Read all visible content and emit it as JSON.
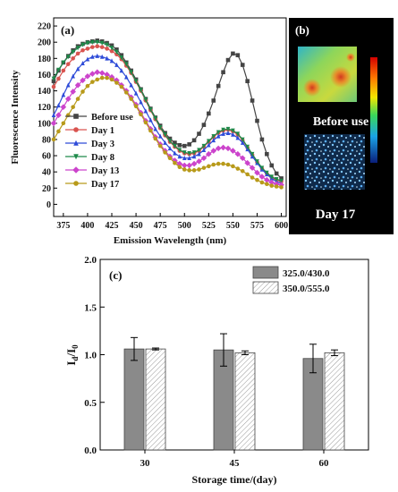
{
  "panel_a": {
    "label": "(a)",
    "chart_data": {
      "type": "line",
      "xlabel": "Emission Wavelength (nm)",
      "ylabel": "Fluorescence Intensity",
      "xlim": [
        365,
        605
      ],
      "ylim": [
        -15,
        230
      ],
      "xticks": [
        375,
        400,
        425,
        450,
        475,
        500,
        525,
        550,
        575,
        600
      ],
      "yticks": [
        0,
        20,
        40,
        60,
        80,
        100,
        120,
        140,
        160,
        180,
        200,
        220
      ],
      "legend_position": "lower-left",
      "series": [
        {
          "name": "Before use",
          "color": "#444444",
          "marker": "square",
          "x": [
            365,
            370,
            375,
            380,
            385,
            390,
            395,
            400,
            405,
            410,
            415,
            420,
            425,
            430,
            435,
            440,
            445,
            450,
            455,
            460,
            465,
            470,
            475,
            480,
            485,
            490,
            495,
            500,
            505,
            510,
            515,
            520,
            525,
            530,
            535,
            540,
            545,
            550,
            555,
            560,
            565,
            570,
            575,
            580,
            585,
            590,
            595,
            600
          ],
          "y": [
            152,
            165,
            175,
            183,
            190,
            195,
            198,
            200,
            201,
            202,
            201,
            199,
            196,
            191,
            184,
            175,
            165,
            154,
            142,
            130,
            118,
            107,
            97,
            88,
            81,
            76,
            73,
            72,
            74,
            79,
            87,
            98,
            112,
            128,
            146,
            163,
            178,
            186,
            184,
            172,
            152,
            128,
            103,
            80,
            62,
            48,
            38,
            32
          ]
        },
        {
          "name": "Day 1",
          "color": "#d9534f",
          "marker": "circle",
          "x": [
            365,
            370,
            375,
            380,
            385,
            390,
            395,
            400,
            405,
            410,
            415,
            420,
            425,
            430,
            435,
            440,
            445,
            450,
            455,
            460,
            465,
            470,
            475,
            480,
            485,
            490,
            495,
            500,
            505,
            510,
            515,
            520,
            525,
            530,
            535,
            540,
            545,
            550,
            555,
            560,
            565,
            570,
            575,
            580,
            585,
            590,
            595,
            600
          ],
          "y": [
            145,
            155,
            165,
            173,
            180,
            186,
            190,
            192,
            194,
            195,
            194,
            192,
            189,
            185,
            179,
            171,
            162,
            151,
            140,
            128,
            116,
            105,
            94,
            85,
            77,
            71,
            66,
            63,
            62,
            63,
            66,
            71,
            77,
            83,
            88,
            91,
            92,
            90,
            86,
            79,
            70,
            61,
            52,
            44,
            38,
            33,
            30,
            28
          ]
        },
        {
          "name": "Day 3",
          "color": "#2e4bd8",
          "marker": "triangle",
          "x": [
            365,
            370,
            375,
            380,
            385,
            390,
            395,
            400,
            405,
            410,
            415,
            420,
            425,
            430,
            435,
            440,
            445,
            450,
            455,
            460,
            465,
            470,
            475,
            480,
            485,
            490,
            495,
            500,
            505,
            510,
            515,
            520,
            525,
            530,
            535,
            540,
            545,
            550,
            555,
            560,
            565,
            570,
            575,
            580,
            585,
            590,
            595,
            600
          ],
          "y": [
            110,
            122,
            135,
            147,
            158,
            167,
            174,
            179,
            182,
            183,
            182,
            180,
            177,
            172,
            165,
            157,
            147,
            137,
            126,
            115,
            104,
            93,
            84,
            76,
            69,
            63,
            59,
            57,
            57,
            59,
            62,
            67,
            73,
            79,
            84,
            87,
            88,
            86,
            82,
            76,
            68,
            59,
            51,
            43,
            37,
            32,
            28,
            26
          ]
        },
        {
          "name": "Day 8",
          "color": "#1e8a4a",
          "marker": "triangle-down",
          "x": [
            365,
            370,
            375,
            380,
            385,
            390,
            395,
            400,
            405,
            410,
            415,
            420,
            425,
            430,
            435,
            440,
            445,
            450,
            455,
            460,
            465,
            470,
            475,
            480,
            485,
            490,
            495,
            500,
            505,
            510,
            515,
            520,
            525,
            530,
            535,
            540,
            545,
            550,
            555,
            560,
            565,
            570,
            575,
            580,
            585,
            590,
            595,
            600
          ],
          "y": [
            155,
            166,
            175,
            182,
            188,
            193,
            197,
            199,
            200,
            200,
            199,
            197,
            193,
            188,
            181,
            173,
            163,
            152,
            141,
            129,
            117,
            106,
            95,
            86,
            78,
            72,
            67,
            64,
            63,
            64,
            67,
            72,
            78,
            84,
            89,
            92,
            93,
            91,
            87,
            80,
            71,
            62,
            53,
            45,
            39,
            34,
            31,
            29
          ]
        },
        {
          "name": "Day 13",
          "color": "#cc44cc",
          "marker": "diamond",
          "x": [
            365,
            370,
            375,
            380,
            385,
            390,
            395,
            400,
            405,
            410,
            415,
            420,
            425,
            430,
            435,
            440,
            445,
            450,
            455,
            460,
            465,
            470,
            475,
            480,
            485,
            490,
            495,
            500,
            505,
            510,
            515,
            520,
            525,
            530,
            535,
            540,
            545,
            550,
            555,
            560,
            565,
            570,
            575,
            580,
            585,
            590,
            595,
            600
          ],
          "y": [
            100,
            110,
            120,
            130,
            139,
            147,
            153,
            158,
            161,
            163,
            162,
            160,
            157,
            153,
            147,
            140,
            132,
            123,
            113,
            103,
            93,
            83,
            74,
            66,
            59,
            54,
            50,
            48,
            48,
            50,
            53,
            57,
            62,
            66,
            69,
            70,
            69,
            66,
            62,
            57,
            51,
            45,
            39,
            34,
            30,
            27,
            25,
            24
          ]
        },
        {
          "name": "Day 17",
          "color": "#b89a1a",
          "marker": "circle",
          "x": [
            365,
            370,
            375,
            380,
            385,
            390,
            395,
            400,
            405,
            410,
            415,
            420,
            425,
            430,
            435,
            440,
            445,
            450,
            455,
            460,
            465,
            470,
            475,
            480,
            485,
            490,
            495,
            500,
            505,
            510,
            515,
            520,
            525,
            530,
            535,
            540,
            545,
            550,
            555,
            560,
            565,
            570,
            575,
            580,
            585,
            590,
            595,
            600
          ],
          "y": [
            80,
            90,
            100,
            110,
            120,
            130,
            139,
            146,
            151,
            154,
            156,
            156,
            154,
            150,
            145,
            138,
            130,
            121,
            111,
            101,
            91,
            81,
            72,
            64,
            57,
            51,
            46,
            43,
            42,
            42,
            43,
            45,
            47,
            49,
            50,
            50,
            49,
            47,
            44,
            41,
            37,
            33,
            30,
            27,
            25,
            23,
            22,
            21
          ]
        }
      ]
    }
  },
  "panel_b": {
    "label": "(b)",
    "before_label": "Before use",
    "after_label": "Day 17"
  },
  "panel_c": {
    "label": "(c)",
    "chart_data": {
      "type": "bar",
      "xlabel": "Storage time/(day)",
      "ylabel_main": "I",
      "ylabel_sub1": "d",
      "ylabel_mid": "/I",
      "ylabel_sub2": "0",
      "categories": [
        "30",
        "45",
        "60"
      ],
      "ylim": [
        0.0,
        2.0
      ],
      "yticks": [
        "0.0",
        "0.5",
        "1.0",
        "1.5",
        "2.0"
      ],
      "legend_position": "top-right",
      "series": [
        {
          "name": "325.0/430.0",
          "color": "#8a8a8a",
          "pattern": "solid",
          "values": [
            1.06,
            1.05,
            0.96
          ],
          "errors": [
            0.12,
            0.17,
            0.15
          ]
        },
        {
          "name": "350.0/555.0",
          "color": "#ffffff",
          "pattern": "hatched",
          "values": [
            1.06,
            1.02,
            1.02
          ],
          "errors": [
            0.01,
            0.02,
            0.03
          ]
        }
      ]
    }
  }
}
